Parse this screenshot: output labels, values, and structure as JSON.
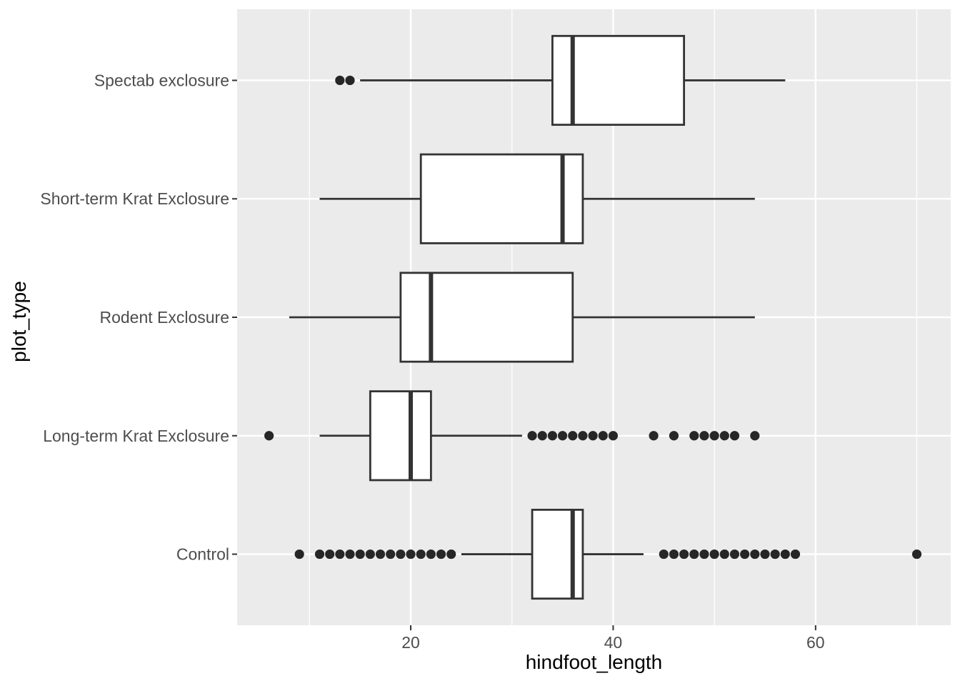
{
  "chart_data": {
    "type": "boxplot",
    "orientation": "horizontal",
    "title": "",
    "xlabel": "hindfoot_length",
    "ylabel": "plot_type",
    "x_domain": [
      2.85,
      73.35
    ],
    "x_ticks": [
      20,
      40,
      60
    ],
    "x_minor_gridlines": [
      10,
      30,
      50,
      70
    ],
    "grid": "on",
    "legend": "none",
    "categories_top_to_bottom": [
      "Spectab exclosure",
      "Short-term Krat Exclosure",
      "Rodent Exclosure",
      "Long-term Krat Exclosure",
      "Control"
    ],
    "series": [
      {
        "category": "Spectab exclosure",
        "whisker_min": 15,
        "q1": 34,
        "median": 36,
        "q3": 47,
        "whisker_max": 57,
        "outliers": [
          13,
          14
        ]
      },
      {
        "category": "Short-term Krat Exclosure",
        "whisker_min": 11,
        "q1": 21,
        "median": 35,
        "q3": 37,
        "whisker_max": 54,
        "outliers": []
      },
      {
        "category": "Rodent Exclosure",
        "whisker_min": 8,
        "q1": 19,
        "median": 22,
        "q3": 36,
        "whisker_max": 54,
        "outliers": []
      },
      {
        "category": "Long-term Krat Exclosure",
        "whisker_min": 11,
        "q1": 16,
        "median": 20,
        "q3": 22,
        "whisker_max": 31,
        "outliers": [
          6,
          32,
          33,
          34,
          35,
          36,
          37,
          38,
          39,
          40,
          44,
          46,
          48,
          49,
          50,
          51,
          52,
          54
        ]
      },
      {
        "category": "Control",
        "whisker_min": 25,
        "q1": 32,
        "median": 36,
        "q3": 37,
        "whisker_max": 43,
        "outliers": [
          9,
          11,
          12,
          13,
          14,
          15,
          16,
          17,
          18,
          19,
          20,
          21,
          22,
          23,
          24,
          45,
          46,
          47,
          48,
          49,
          50,
          51,
          52,
          53,
          54,
          55,
          56,
          57,
          58,
          70
        ]
      }
    ],
    "style": {
      "panel_bg": "#EBEBEB",
      "grid_color": "#FFFFFF",
      "box_fill": "#FFFFFF",
      "stroke_color": "#333333",
      "outlier_color": "#262626",
      "tick_mark_color": "#333333",
      "tick_label_color": "#4D4D4D",
      "axis_title_color": "#000000"
    }
  }
}
